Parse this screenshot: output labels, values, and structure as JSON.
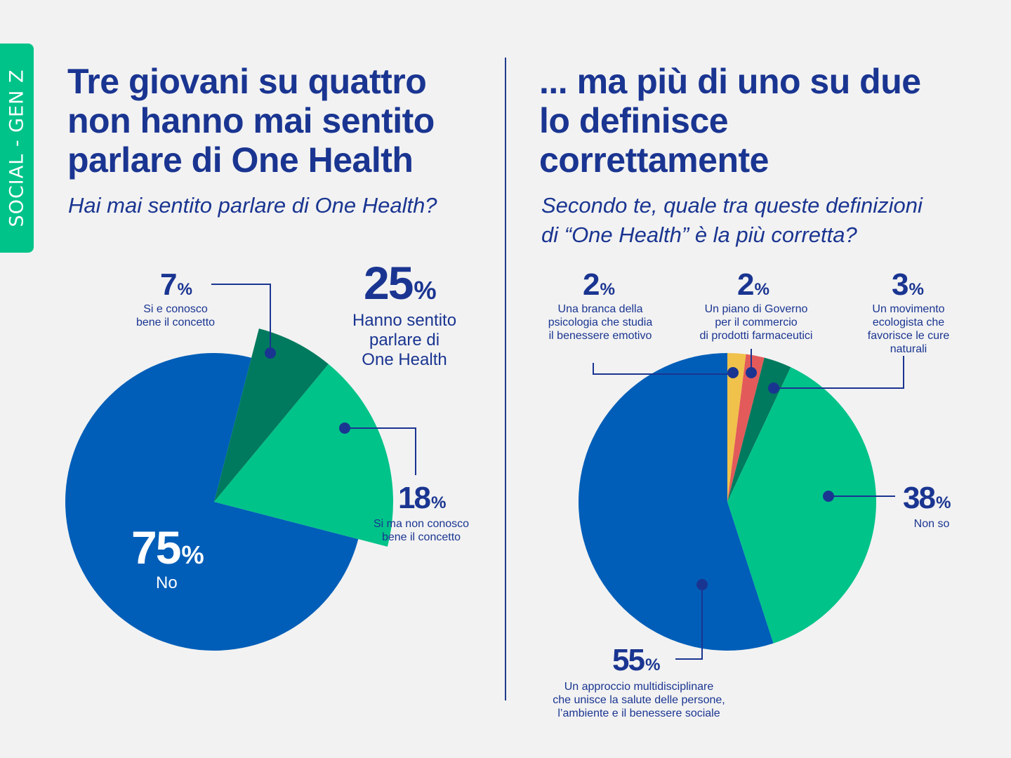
{
  "side_tab": "SOCIAL - GEN Z",
  "left": {
    "title": "Tre giovani su quattro\nnon hanno mai sentito\nparlare di One Health",
    "question": "Hai mai sentito parlare di One Health?",
    "group_value": "25",
    "group_label": "Hanno sentito\nparlare di\nOne Health"
  },
  "right": {
    "title": "... ma più di uno su due\nlo definisce\ncorrettamente",
    "question": "Secondo te, quale tra queste definizioni\ndi “One Health” è la più corretta?"
  },
  "percent_sign": "%",
  "colors": {
    "blue": "#005eb8",
    "green": "#00c389",
    "dark_green": "#007a5e",
    "red": "#e35a5a",
    "yellow": "#f0c24b",
    "navy": "#1a3591",
    "tab": "#00c389",
    "background": "#f2f2f2"
  },
  "chart_data": [
    {
      "type": "pie",
      "slices": [
        {
          "label": "No",
          "value": 75,
          "color": "#005eb8"
        },
        {
          "label": "Si ma non conosco\nbene il concetto",
          "value": 18,
          "color": "#00c389"
        },
        {
          "label": "Si e conosco\nbene il concetto",
          "value": 7,
          "color": "#007a5e"
        }
      ]
    },
    {
      "type": "pie",
      "slices": [
        {
          "label": "Una branca della\npsicologia che studia\nil benessere emotivo",
          "value": 2,
          "color": "#f0c24b"
        },
        {
          "label": "Un piano di Governo\nper il commercio\ndi prodotti farmaceutici",
          "value": 2,
          "color": "#e35a5a"
        },
        {
          "label": "Un movimento\necologista che\nfavorisce le cure\nnaturali",
          "value": 3,
          "color": "#007a5e"
        },
        {
          "label": "Non so",
          "value": 38,
          "color": "#00c389"
        },
        {
          "label": "Un approccio multidisciplinare\nche unisce la salute delle persone,\nl’ambiente e il benessere sociale",
          "value": 55,
          "color": "#005eb8"
        }
      ]
    }
  ]
}
